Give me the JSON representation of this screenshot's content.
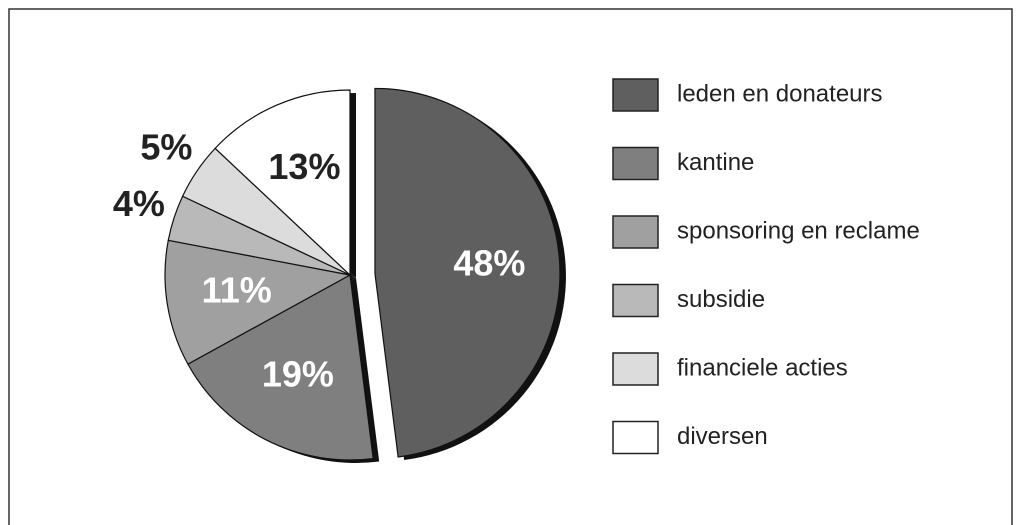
{
  "chart_data": {
    "type": "pie",
    "categories": [
      "leden en donateurs",
      "kantine",
      "sponsoring en reclame",
      "subsidie",
      "financiele acties",
      "diversen"
    ],
    "values": [
      48,
      19,
      11,
      4,
      5,
      13
    ],
    "value_labels": [
      "48%",
      "19%",
      "11%",
      "4%",
      "5%",
      "13%"
    ],
    "colors": [
      "#5f5f5f",
      "#7f7f7f",
      "#a0a0a0",
      "#b9b9b9",
      "#dcdcdc",
      "#ffffff"
    ],
    "exploded": [
      0
    ]
  }
}
